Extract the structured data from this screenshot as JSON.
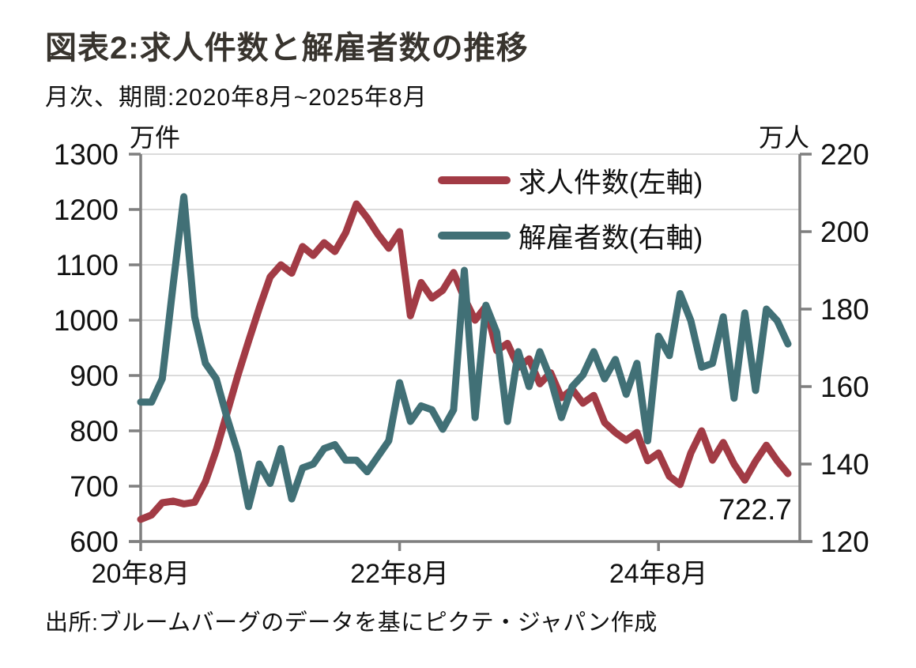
{
  "header": {
    "title": "図表2:求人件数と解雇者数の推移",
    "subtitle": "月次、期間:2020年8月~2025年8月"
  },
  "footer": {
    "source": "出所:ブルームバーグのデータを基にピクテ・ジャパン作成"
  },
  "colors": {
    "series_job_openings": "#A23B45",
    "series_layoffs": "#417076",
    "axis": "#7F7F7F",
    "grid": "#DBDBDB",
    "title_text": "#38342E",
    "text": "#111111",
    "background": "#FFFFFF"
  },
  "chart_data": {
    "type": "line",
    "title": "図表2:求人件数と解雇者数の推移",
    "subtitle": "月次、期間:2020年8月~2025年8月",
    "grid": true,
    "legend_position": "top-right-inside",
    "x": [
      "2020-08",
      "2020-09",
      "2020-10",
      "2020-11",
      "2020-12",
      "2021-01",
      "2021-02",
      "2021-03",
      "2021-04",
      "2021-05",
      "2021-06",
      "2021-07",
      "2021-08",
      "2021-09",
      "2021-10",
      "2021-11",
      "2021-12",
      "2022-01",
      "2022-02",
      "2022-03",
      "2022-04",
      "2022-05",
      "2022-06",
      "2022-07",
      "2022-08",
      "2022-09",
      "2022-10",
      "2022-11",
      "2022-12",
      "2023-01",
      "2023-02",
      "2023-03",
      "2023-04",
      "2023-05",
      "2023-06",
      "2023-07",
      "2023-08",
      "2023-09",
      "2023-10",
      "2023-11",
      "2023-12",
      "2024-01",
      "2024-02",
      "2024-03",
      "2024-04",
      "2024-05",
      "2024-06",
      "2024-07",
      "2024-08",
      "2024-09",
      "2024-10",
      "2024-11",
      "2024-12",
      "2025-01",
      "2025-02",
      "2025-03",
      "2025-04",
      "2025-05",
      "2025-06",
      "2025-07",
      "2025-08"
    ],
    "x_tick_labels": [
      "20年8月",
      "22年8月",
      "24年8月"
    ],
    "x_tick_month_index": [
      0,
      24,
      48
    ],
    "left_axis": {
      "unit": "万件",
      "min": 600,
      "max": 1300,
      "ticks": [
        600,
        700,
        800,
        900,
        1000,
        1100,
        1200,
        1300
      ]
    },
    "right_axis": {
      "unit": "万人",
      "min": 120,
      "max": 220,
      "ticks": [
        120,
        140,
        160,
        180,
        200,
        220
      ]
    },
    "series": [
      {
        "name": "求人件数(左軸)",
        "axis": "left",
        "color": "#A23B45",
        "values": [
          640,
          648,
          670,
          673,
          668,
          671,
          708,
          765,
          832,
          900,
          962,
          1022,
          1078,
          1100,
          1085,
          1133,
          1117,
          1140,
          1124,
          1158,
          1210,
          1185,
          1155,
          1130,
          1160,
          1008,
          1068,
          1040,
          1054,
          1086,
          1040,
          1000,
          1025,
          945,
          958,
          915,
          930,
          885,
          905,
          860,
          875,
          850,
          864,
          815,
          797,
          783,
          797,
          746,
          760,
          718,
          703,
          760,
          800,
          747,
          779,
          740,
          711,
          745,
          774,
          746,
          722.7
        ]
      },
      {
        "name": "解雇者数(右軸)",
        "axis": "right",
        "color": "#417076",
        "values": [
          156,
          156,
          162,
          186,
          209,
          178,
          166,
          162,
          152,
          143,
          129,
          140,
          135,
          144,
          131,
          139,
          140,
          144,
          145,
          141,
          141,
          138,
          142,
          146,
          161,
          151,
          155,
          154,
          149,
          154,
          190,
          152,
          181,
          174,
          151,
          169,
          160,
          169,
          162,
          152,
          160,
          163,
          169,
          162,
          167,
          158,
          166,
          146,
          173,
          168,
          184,
          177,
          165,
          166,
          178,
          157,
          179,
          159,
          180,
          177,
          171
        ]
      }
    ],
    "annotation": {
      "text": "722.7",
      "value": 722.7,
      "series": "求人件数(左軸)",
      "x": "2025-08"
    }
  }
}
